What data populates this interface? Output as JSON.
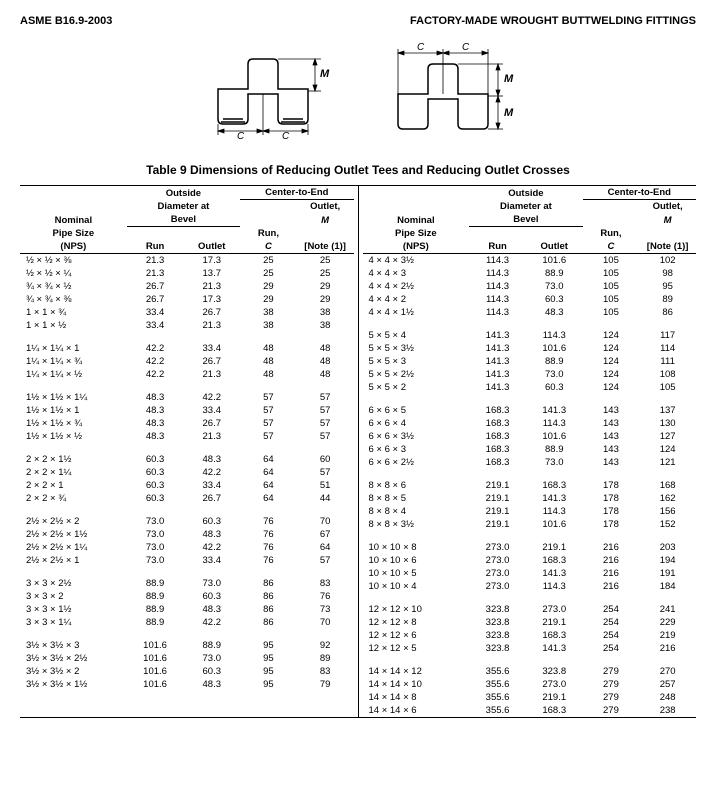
{
  "header": {
    "left": "ASME B16.9-2003",
    "right": "FACTORY-MADE WROUGHT BUTTWELDING FITTINGS"
  },
  "caption": "Table 9   Dimensions of Reducing Outlet Tees and Reducing Outlet Crosses",
  "col_headers": {
    "nominal1": "Nominal",
    "nominal2": "Pipe Size",
    "nominal3": "(NPS)",
    "od1": "Outside",
    "od2": "Diameter at",
    "od3": "Bevel",
    "run": "Run",
    "outlet": "Outlet",
    "cte": "Center-to-End",
    "runc1": "Run,",
    "runc2": "C",
    "out1": "Outlet,",
    "out2": "M",
    "out3": "[Note (1)]"
  },
  "left_rows": [
    [
      "½ × ½ × ⅜",
      "21.3",
      "17.3",
      "25",
      "25"
    ],
    [
      "½ × ½ × ¼",
      "21.3",
      "13.7",
      "25",
      "25"
    ],
    [
      "¾ × ¾ × ½",
      "26.7",
      "21.3",
      "29",
      "29"
    ],
    [
      "¾ × ¾ × ⅜",
      "26.7",
      "17.3",
      "29",
      "29"
    ],
    [
      "1 × 1 × ¾",
      "33.4",
      "26.7",
      "38",
      "38"
    ],
    [
      "1 × 1 × ½",
      "33.4",
      "21.3",
      "38",
      "38"
    ],
    [],
    [
      "1¼ × 1¼ × 1",
      "42.2",
      "33.4",
      "48",
      "48"
    ],
    [
      "1¼ × 1¼ × ¾",
      "42.2",
      "26.7",
      "48",
      "48"
    ],
    [
      "1¼ × 1¼ × ½",
      "42.2",
      "21.3",
      "48",
      "48"
    ],
    [],
    [
      "1½ × 1½ × 1¼",
      "48.3",
      "42.2",
      "57",
      "57"
    ],
    [
      "1½ × 1½ × 1",
      "48.3",
      "33.4",
      "57",
      "57"
    ],
    [
      "1½ × 1½ × ¾",
      "48.3",
      "26.7",
      "57",
      "57"
    ],
    [
      "1½ × 1½ × ½",
      "48.3",
      "21.3",
      "57",
      "57"
    ],
    [],
    [
      "2 × 2 × 1½",
      "60.3",
      "48.3",
      "64",
      "60"
    ],
    [
      "2 × 2 × 1¼",
      "60.3",
      "42.2",
      "64",
      "57"
    ],
    [
      "2 × 2 × 1",
      "60.3",
      "33.4",
      "64",
      "51"
    ],
    [
      "2 × 2 × ¾",
      "60.3",
      "26.7",
      "64",
      "44"
    ],
    [],
    [
      "2½ × 2½ × 2",
      "73.0",
      "60.3",
      "76",
      "70"
    ],
    [
      "2½ × 2½ × 1½",
      "73.0",
      "48.3",
      "76",
      "67"
    ],
    [
      "2½ × 2½ × 1¼",
      "73.0",
      "42.2",
      "76",
      "64"
    ],
    [
      "2½ × 2½ × 1",
      "73.0",
      "33.4",
      "76",
      "57"
    ],
    [],
    [
      "3 × 3 × 2½",
      "88.9",
      "73.0",
      "86",
      "83"
    ],
    [
      "3 × 3 × 2",
      "88.9",
      "60.3",
      "86",
      "76"
    ],
    [
      "3 × 3 × 1½",
      "88.9",
      "48.3",
      "86",
      "73"
    ],
    [
      "3 × 3 × 1¼",
      "88.9",
      "42.2",
      "86",
      "70"
    ],
    [],
    [
      "3½ × 3½ × 3",
      "101.6",
      "88.9",
      "95",
      "92"
    ],
    [
      "3½ × 3½ × 2½",
      "101.6",
      "73.0",
      "95",
      "89"
    ],
    [
      "3½ × 3½ × 2",
      "101.6",
      "60.3",
      "95",
      "83"
    ],
    [
      "3½ × 3½ × 1½",
      "101.6",
      "48.3",
      "95",
      "79"
    ]
  ],
  "right_rows": [
    [
      "4 × 4 × 3½",
      "114.3",
      "101.6",
      "105",
      "102"
    ],
    [
      "4 × 4 × 3",
      "114.3",
      "88.9",
      "105",
      "98"
    ],
    [
      "4 × 4 × 2½",
      "114.3",
      "73.0",
      "105",
      "95"
    ],
    [
      "4 × 4 × 2",
      "114.3",
      "60.3",
      "105",
      "89"
    ],
    [
      "4 × 4 × 1½",
      "114.3",
      "48.3",
      "105",
      "86"
    ],
    [],
    [
      "5 × 5 × 4",
      "141.3",
      "114.3",
      "124",
      "117"
    ],
    [
      "5 × 5 × 3½",
      "141.3",
      "101.6",
      "124",
      "114"
    ],
    [
      "5 × 5 × 3",
      "141.3",
      "88.9",
      "124",
      "111"
    ],
    [
      "5 × 5 × 2½",
      "141.3",
      "73.0",
      "124",
      "108"
    ],
    [
      "5 × 5 × 2",
      "141.3",
      "60.3",
      "124",
      "105"
    ],
    [],
    [
      "6 × 6 × 5",
      "168.3",
      "141.3",
      "143",
      "137"
    ],
    [
      "6 × 6 × 4",
      "168.3",
      "114.3",
      "143",
      "130"
    ],
    [
      "6 × 6 × 3½",
      "168.3",
      "101.6",
      "143",
      "127"
    ],
    [
      "6 × 6 × 3",
      "168.3",
      "88.9",
      "143",
      "124"
    ],
    [
      "6 × 6 × 2½",
      "168.3",
      "73.0",
      "143",
      "121"
    ],
    [],
    [
      "8 × 8 × 6",
      "219.1",
      "168.3",
      "178",
      "168"
    ],
    [
      "8 × 8 × 5",
      "219.1",
      "141.3",
      "178",
      "162"
    ],
    [
      "8 × 8 × 4",
      "219.1",
      "114.3",
      "178",
      "156"
    ],
    [
      "8 × 8 × 3½",
      "219.1",
      "101.6",
      "178",
      "152"
    ],
    [],
    [
      "10 × 10 × 8",
      "273.0",
      "219.1",
      "216",
      "203"
    ],
    [
      "10 × 10 × 6",
      "273.0",
      "168.3",
      "216",
      "194"
    ],
    [
      "10 × 10 × 5",
      "273.0",
      "141.3",
      "216",
      "191"
    ],
    [
      "10 × 10 × 4",
      "273.0",
      "114.3",
      "216",
      "184"
    ],
    [],
    [
      "12 × 12 × 10",
      "323.8",
      "273.0",
      "254",
      "241"
    ],
    [
      "12 × 12 × 8",
      "323.8",
      "219.1",
      "254",
      "229"
    ],
    [
      "12 × 12 × 6",
      "323.8",
      "168.3",
      "254",
      "219"
    ],
    [
      "12 × 12 × 5",
      "323.8",
      "141.3",
      "254",
      "216"
    ],
    [],
    [
      "14 × 14 × 12",
      "355.6",
      "323.8",
      "279",
      "270"
    ],
    [
      "14 × 14 × 10",
      "355.6",
      "273.0",
      "279",
      "257"
    ],
    [
      "14 × 14 × 8",
      "355.6",
      "219.1",
      "279",
      "248"
    ],
    [
      "14 × 14 × 6",
      "355.6",
      "168.3",
      "279",
      "238"
    ]
  ]
}
